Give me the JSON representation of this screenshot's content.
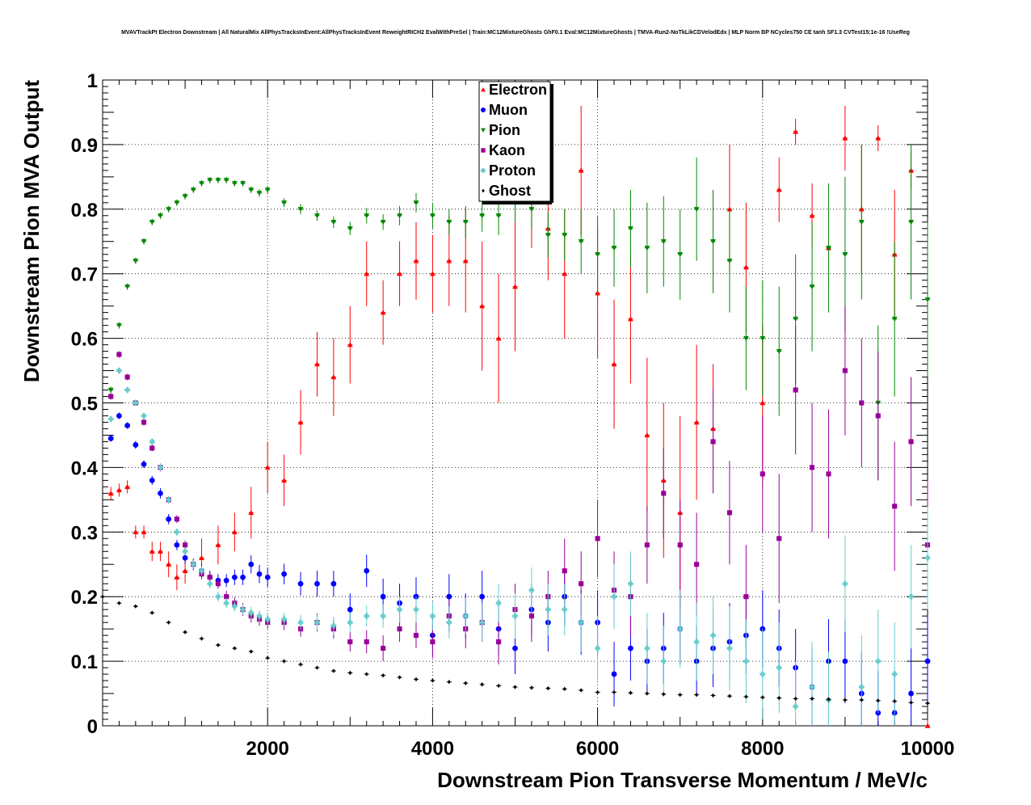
{
  "chart_data": {
    "type": "scatter",
    "title": "MVAVTrackPt Electron Downstream | All NaturalMix AllPhysTracksInEvent:AllPhysTracksInEvent ReweightRICH2 EvalWithPreSel | Train:MC12MixtureGhosts GhF0.1 Eval:MC12MixtureGhosts | TMVA-Run2-NoTkLikCDVelodEdx | MLP Norm BP NCycles750 CE tanh SF1.3 CVTest15:1e-16 !UseReg",
    "xlabel": "Downstream Pion Transverse Momentum / MeV/c",
    "ylabel": "Downstream Pion MVA Output",
    "xlim": [
      0,
      10000
    ],
    "ylim": [
      0,
      1
    ],
    "xticks": [
      2000,
      4000,
      6000,
      8000,
      10000
    ],
    "yticks": [
      0,
      0.1,
      0.2,
      0.3,
      0.4,
      0.5,
      0.6,
      0.7,
      0.8,
      0.9,
      1
    ],
    "ytick_labels": [
      "0",
      "0.1",
      "0.2",
      "0.3",
      "0.4",
      "0.5",
      "0.6",
      "0.7",
      "0.8",
      "0.9",
      "1"
    ],
    "grid": true,
    "legend_position": "top-center",
    "series": [
      {
        "name": "Electron",
        "color": "#ff0000",
        "marker": "triangle-up",
        "x": [
          100,
          200,
          300,
          400,
          500,
          600,
          700,
          800,
          900,
          1000,
          1200,
          1400,
          1600,
          1800,
          2000,
          2200,
          2400,
          2600,
          2800,
          3000,
          3200,
          3400,
          3600,
          3800,
          4000,
          4200,
          4400,
          4600,
          4800,
          5000,
          5200,
          5400,
          5600,
          5800,
          6000,
          6200,
          6400,
          6600,
          6800,
          7000,
          7200,
          7400,
          7600,
          7800,
          8000,
          8200,
          8400,
          8600,
          8800,
          9000,
          9200,
          9400,
          9600,
          9800,
          10000
        ],
        "y": [
          0.36,
          0.365,
          0.37,
          0.3,
          0.3,
          0.27,
          0.27,
          0.25,
          0.23,
          0.24,
          0.26,
          0.28,
          0.3,
          0.33,
          0.4,
          0.38,
          0.47,
          0.56,
          0.54,
          0.59,
          0.7,
          0.64,
          0.7,
          0.72,
          0.7,
          0.72,
          0.72,
          0.65,
          0.6,
          0.68,
          0.82,
          0.77,
          0.7,
          0.86,
          0.67,
          0.56,
          0.63,
          0.45,
          0.38,
          0.33,
          0.47,
          0.46,
          0.8,
          0.71,
          0.5,
          0.83,
          0.92,
          0.79,
          0.74,
          0.91,
          0.8,
          0.91,
          0.73,
          0.86,
          0
        ],
        "yerr": [
          0.01,
          0.01,
          0.01,
          0.01,
          0.01,
          0.015,
          0.015,
          0.02,
          0.02,
          0.02,
          0.03,
          0.03,
          0.03,
          0.04,
          0.04,
          0.04,
          0.05,
          0.05,
          0.06,
          0.06,
          0.05,
          0.05,
          0.05,
          0.06,
          0.06,
          0.07,
          0.08,
          0.1,
          0.1,
          0.1,
          0.08,
          0.08,
          0.1,
          0.1,
          0.1,
          0.1,
          0.1,
          0.12,
          0.12,
          0.15,
          0.12,
          0.1,
          0.1,
          0.1,
          0.12,
          0.05,
          0.02,
          0.05,
          0.06,
          0.05,
          0.1,
          0.02,
          0.1,
          0.03,
          0.01
        ]
      },
      {
        "name": "Muon",
        "color": "#0000ff",
        "marker": "circle",
        "x": [
          100,
          200,
          300,
          400,
          500,
          600,
          700,
          800,
          900,
          1000,
          1100,
          1200,
          1300,
          1400,
          1500,
          1600,
          1700,
          1800,
          1900,
          2000,
          2200,
          2400,
          2600,
          2800,
          3000,
          3200,
          3400,
          3600,
          3800,
          4000,
          4200,
          4400,
          4600,
          4800,
          5000,
          5200,
          5400,
          5600,
          5800,
          6000,
          6200,
          6400,
          6600,
          6800,
          7000,
          7200,
          7400,
          7600,
          7800,
          8000,
          8200,
          8400,
          8600,
          8800,
          9000,
          9200,
          9400,
          9600,
          9800,
          10000
        ],
        "y": [
          0.445,
          0.48,
          0.465,
          0.435,
          0.405,
          0.38,
          0.36,
          0.32,
          0.28,
          0.26,
          0.25,
          0.24,
          0.23,
          0.225,
          0.225,
          0.23,
          0.23,
          0.25,
          0.235,
          0.23,
          0.235,
          0.22,
          0.22,
          0.22,
          0.18,
          0.24,
          0.2,
          0.19,
          0.2,
          0.14,
          0.2,
          0.17,
          0.2,
          0.15,
          0.12,
          0.18,
          0.16,
          0.2,
          0.16,
          0.16,
          0.08,
          0.12,
          0.1,
          0.12,
          0.15,
          0.1,
          0.12,
          0.13,
          0.14,
          0.15,
          0.12,
          0.09,
          0.06,
          0.1,
          0.1,
          0.05,
          0.02,
          0.02,
          0.05,
          0.1
        ],
        "yerr": [
          0.005,
          0.005,
          0.005,
          0.006,
          0.006,
          0.007,
          0.008,
          0.008,
          0.008,
          0.009,
          0.009,
          0.01,
          0.01,
          0.01,
          0.01,
          0.012,
          0.012,
          0.014,
          0.014,
          0.015,
          0.016,
          0.018,
          0.02,
          0.02,
          0.025,
          0.025,
          0.028,
          0.03,
          0.03,
          0.03,
          0.035,
          0.035,
          0.04,
          0.04,
          0.04,
          0.04,
          0.045,
          0.045,
          0.05,
          0.05,
          0.05,
          0.05,
          0.05,
          0.055,
          0.055,
          0.055,
          0.06,
          0.06,
          0.06,
          0.06,
          0.06,
          0.06,
          0.06,
          0.065,
          0.065,
          0.065,
          0.065,
          0.065,
          0.07,
          0.07
        ]
      },
      {
        "name": "Pion",
        "color": "#008800",
        "marker": "triangle-down",
        "x": [
          100,
          200,
          300,
          400,
          500,
          600,
          700,
          800,
          900,
          1000,
          1100,
          1200,
          1300,
          1400,
          1500,
          1600,
          1700,
          1800,
          1900,
          2000,
          2200,
          2400,
          2600,
          2800,
          3000,
          3200,
          3400,
          3600,
          3800,
          4000,
          4200,
          4400,
          4600,
          4800,
          5000,
          5200,
          5400,
          5600,
          5800,
          6000,
          6200,
          6400,
          6600,
          6800,
          7000,
          7200,
          7400,
          7600,
          7800,
          8000,
          8200,
          8400,
          8600,
          8800,
          9000,
          9200,
          9400,
          9600,
          9800,
          10000
        ],
        "y": [
          0.52,
          0.62,
          0.68,
          0.72,
          0.75,
          0.78,
          0.79,
          0.8,
          0.81,
          0.82,
          0.83,
          0.84,
          0.845,
          0.845,
          0.845,
          0.84,
          0.84,
          0.83,
          0.825,
          0.83,
          0.81,
          0.8,
          0.79,
          0.78,
          0.77,
          0.79,
          0.78,
          0.79,
          0.81,
          0.79,
          0.78,
          0.78,
          0.79,
          0.79,
          0.81,
          0.8,
          0.76,
          0.76,
          0.75,
          0.73,
          0.74,
          0.77,
          0.74,
          0.75,
          0.73,
          0.8,
          0.75,
          0.72,
          0.6,
          0.6,
          0.58,
          0.63,
          0.68,
          0.74,
          0.73,
          0.78,
          0.5,
          0.63,
          0.78,
          0.66
        ],
        "yerr": [
          0.005,
          0.005,
          0.005,
          0.005,
          0.005,
          0.005,
          0.005,
          0.005,
          0.005,
          0.005,
          0.005,
          0.005,
          0.005,
          0.005,
          0.005,
          0.005,
          0.005,
          0.005,
          0.006,
          0.006,
          0.007,
          0.008,
          0.008,
          0.009,
          0.01,
          0.012,
          0.012,
          0.015,
          0.015,
          0.02,
          0.02,
          0.025,
          0.025,
          0.03,
          0.03,
          0.03,
          0.035,
          0.04,
          0.05,
          0.06,
          0.06,
          0.06,
          0.07,
          0.07,
          0.07,
          0.08,
          0.08,
          0.08,
          0.08,
          0.09,
          0.1,
          0.1,
          0.1,
          0.1,
          0.12,
          0.12,
          0.12,
          0.12,
          0.12,
          0.12
        ]
      },
      {
        "name": "Kaon",
        "color": "#990099",
        "marker": "square",
        "x": [
          100,
          200,
          300,
          400,
          500,
          600,
          700,
          800,
          900,
          1000,
          1100,
          1200,
          1300,
          1400,
          1500,
          1600,
          1700,
          1800,
          1900,
          2000,
          2200,
          2400,
          2600,
          2800,
          3000,
          3200,
          3400,
          3600,
          3800,
          4000,
          4200,
          4400,
          4600,
          4800,
          5000,
          5200,
          5400,
          5600,
          5800,
          6000,
          6200,
          6400,
          6600,
          6800,
          7000,
          7200,
          7400,
          7600,
          7800,
          8000,
          8200,
          8400,
          8600,
          8800,
          9000,
          9200,
          9400,
          9600,
          9800,
          10000
        ],
        "y": [
          0.51,
          0.575,
          0.54,
          0.5,
          0.47,
          0.43,
          0.4,
          0.35,
          0.32,
          0.28,
          0.25,
          0.235,
          0.23,
          0.22,
          0.2,
          0.19,
          0.18,
          0.17,
          0.165,
          0.16,
          0.16,
          0.15,
          0.16,
          0.15,
          0.13,
          0.13,
          0.12,
          0.15,
          0.14,
          0.13,
          0.17,
          0.15,
          0.16,
          0.13,
          0.18,
          0.17,
          0.2,
          0.24,
          0.22,
          0.29,
          0.21,
          0.2,
          0.28,
          0.36,
          0.28,
          0.25,
          0.44,
          0.33,
          0.2,
          0.39,
          0.29,
          0.52,
          0.4,
          0.39,
          0.55,
          0.5,
          0.48,
          0.34,
          0.44,
          0.28
        ],
        "yerr": [
          0.005,
          0.005,
          0.005,
          0.005,
          0.005,
          0.005,
          0.006,
          0.006,
          0.006,
          0.007,
          0.007,
          0.008,
          0.008,
          0.008,
          0.009,
          0.009,
          0.01,
          0.01,
          0.01,
          0.01,
          0.012,
          0.012,
          0.014,
          0.015,
          0.015,
          0.018,
          0.02,
          0.02,
          0.02,
          0.025,
          0.025,
          0.03,
          0.03,
          0.035,
          0.04,
          0.04,
          0.04,
          0.05,
          0.05,
          0.06,
          0.06,
          0.06,
          0.06,
          0.07,
          0.07,
          0.08,
          0.08,
          0.08,
          0.08,
          0.09,
          0.1,
          0.1,
          0.1,
          0.1,
          0.1,
          0.1,
          0.1,
          0.1,
          0.1,
          0.1
        ]
      },
      {
        "name": "Proton",
        "color": "#66cccc",
        "marker": "cross",
        "x": [
          100,
          200,
          300,
          400,
          500,
          600,
          700,
          800,
          900,
          1000,
          1100,
          1200,
          1300,
          1400,
          1500,
          1600,
          1700,
          1800,
          1900,
          2000,
          2200,
          2400,
          2600,
          2800,
          3000,
          3200,
          3400,
          3600,
          3800,
          4000,
          4200,
          4400,
          4600,
          4800,
          5000,
          5200,
          5400,
          5600,
          5800,
          6000,
          6200,
          6400,
          6600,
          6800,
          7000,
          7200,
          7400,
          7600,
          7800,
          8000,
          8200,
          8400,
          8600,
          8800,
          9000,
          9200,
          9400,
          9600,
          9800,
          10000
        ],
        "y": [
          0.475,
          0.55,
          0.52,
          0.5,
          0.48,
          0.44,
          0.4,
          0.35,
          0.3,
          0.27,
          0.25,
          0.24,
          0.22,
          0.2,
          0.19,
          0.185,
          0.18,
          0.175,
          0.17,
          0.165,
          0.165,
          0.16,
          0.16,
          0.155,
          0.16,
          0.17,
          0.17,
          0.18,
          0.18,
          0.17,
          0.16,
          0.17,
          0.16,
          0.19,
          0.17,
          0.21,
          0.18,
          0.18,
          0.16,
          0.12,
          0.2,
          0.22,
          0.12,
          0.1,
          0.15,
          0.13,
          0.14,
          0.12,
          0.1,
          0.08,
          0.09,
          0.03,
          0.06,
          0.04,
          0.22,
          0.06,
          0.1,
          0.08,
          0.2,
          0.26
        ],
        "yerr": [
          0.005,
          0.005,
          0.005,
          0.005,
          0.005,
          0.005,
          0.005,
          0.006,
          0.006,
          0.006,
          0.007,
          0.007,
          0.007,
          0.008,
          0.008,
          0.008,
          0.008,
          0.009,
          0.009,
          0.01,
          0.01,
          0.012,
          0.012,
          0.014,
          0.015,
          0.016,
          0.018,
          0.02,
          0.02,
          0.022,
          0.025,
          0.028,
          0.03,
          0.03,
          0.035,
          0.035,
          0.04,
          0.04,
          0.045,
          0.05,
          0.05,
          0.05,
          0.055,
          0.055,
          0.06,
          0.06,
          0.06,
          0.065,
          0.065,
          0.07,
          0.07,
          0.07,
          0.07,
          0.075,
          0.075,
          0.08,
          0.08,
          0.08,
          0.08,
          0.08
        ]
      },
      {
        "name": "Ghost",
        "color": "#000000",
        "marker": "diamond",
        "x": [
          0,
          200,
          400,
          600,
          800,
          1000,
          1200,
          1400,
          1600,
          1800,
          2000,
          2200,
          2400,
          2600,
          2800,
          3000,
          3200,
          3400,
          3600,
          3800,
          4000,
          4200,
          4400,
          4600,
          4800,
          5000,
          5200,
          5400,
          5600,
          5800,
          6000,
          6200,
          6400,
          6600,
          6800,
          7000,
          7200,
          7400,
          7600,
          7800,
          8000,
          8200,
          8400,
          8600,
          8800,
          9000,
          9200,
          9400,
          9600,
          9800,
          10000
        ],
        "y": [
          0.2,
          0.19,
          0.185,
          0.175,
          0.16,
          0.145,
          0.135,
          0.125,
          0.12,
          0.115,
          0.105,
          0.1,
          0.095,
          0.09,
          0.085,
          0.082,
          0.08,
          0.078,
          0.075,
          0.072,
          0.07,
          0.068,
          0.066,
          0.064,
          0.062,
          0.06,
          0.059,
          0.058,
          0.057,
          0.055,
          0.052,
          0.052,
          0.051,
          0.05,
          0.049,
          0.048,
          0.048,
          0.047,
          0.046,
          0.045,
          0.044,
          0.043,
          0.042,
          0.042,
          0.041,
          0.04,
          0.04,
          0.039,
          0.038,
          0.036,
          0.035
        ],
        "yerr": [
          0.002,
          0.002,
          0.002,
          0.002,
          0.002,
          0.002,
          0.002,
          0.002,
          0.002,
          0.002,
          0.002,
          0.002,
          0.002,
          0.002,
          0.002,
          0.002,
          0.002,
          0.002,
          0.002,
          0.002,
          0.002,
          0.002,
          0.002,
          0.002,
          0.002,
          0.002,
          0.002,
          0.002,
          0.002,
          0.002,
          0.002,
          0.002,
          0.002,
          0.002,
          0.002,
          0.002,
          0.002,
          0.002,
          0.002,
          0.002,
          0.002,
          0.002,
          0.002,
          0.002,
          0.002,
          0.002,
          0.002,
          0.002,
          0.002,
          0.002,
          0.002
        ]
      }
    ]
  }
}
